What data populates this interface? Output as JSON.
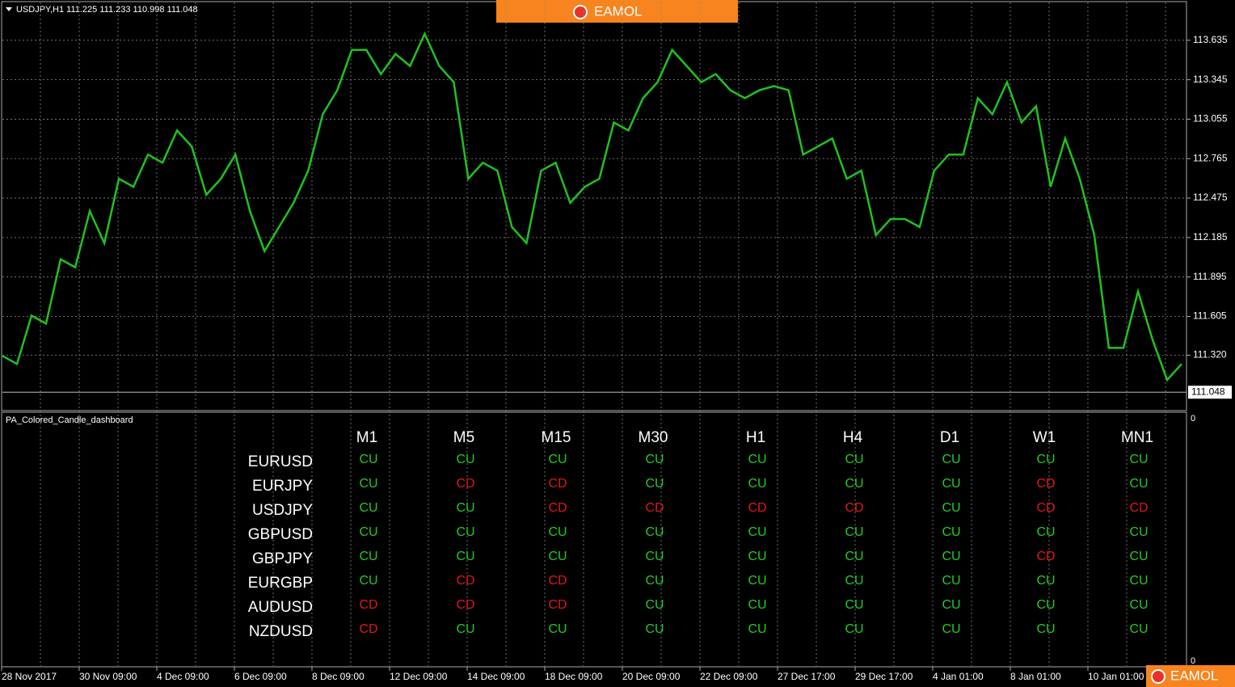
{
  "header": {
    "title": "USDJPY,H1  111.225 111.233 110.998 111.048"
  },
  "logo": "EAMOL",
  "chart_data": {
    "type": "line",
    "color": "#1fc21f",
    "values": [
      111.315,
      111.256,
      111.611,
      111.552,
      112.025,
      111.966,
      112.38,
      112.144,
      112.617,
      112.558,
      112.795,
      112.735,
      112.972,
      112.854,
      112.499,
      112.617,
      112.795,
      112.38,
      112.085,
      112.262,
      112.44,
      112.676,
      113.091,
      113.268,
      113.564,
      113.564,
      113.386,
      113.534,
      113.446,
      113.682,
      113.446,
      113.327,
      112.617,
      112.735,
      112.676,
      112.262,
      112.144,
      112.676,
      112.735,
      112.44,
      112.558,
      112.617,
      113.031,
      112.972,
      113.209,
      113.327,
      113.564,
      113.446,
      113.327,
      113.386,
      113.268,
      113.209,
      113.268,
      113.298,
      113.268,
      112.795,
      112.854,
      112.913,
      112.617,
      112.676,
      112.203,
      112.321,
      112.321,
      112.262,
      112.676,
      112.795,
      112.795,
      113.209,
      113.091,
      113.327,
      113.031,
      113.15,
      112.558,
      112.913,
      112.617,
      112.203,
      111.374,
      111.374,
      111.789,
      111.434,
      111.138,
      111.256
    ],
    "ylim": [
      110.913,
      113.919
    ],
    "yticks": [
      {
        "value": 111.32,
        "label": "111.320"
      },
      111.605,
      111.895,
      112.185,
      112.475,
      112.765,
      113.055,
      113.345,
      113.635
    ],
    "last": 111.048,
    "grid": true,
    "xtick_labels": [
      "28 Nov 2017",
      "30 Nov 09:00",
      "4 Dec 09:00",
      "6 Dec 09:00",
      "8 Dec 09:00",
      "12 Dec 09:00",
      "14 Dec 09:00",
      "18 Dec 09:00",
      "20 Dec 09:00",
      "22 Dec 09:00",
      "27 Dec 17:00",
      "29 Dec 17:00",
      "4 Jan 01:00",
      "8 Jan 01:00",
      "10 Jan 01:00"
    ]
  },
  "dashboard": {
    "name": "PA_Colored_Candle_dashboard",
    "pane_ticks": [
      0,
      0
    ],
    "timeframes": [
      "M1",
      "M5",
      "M15",
      "M30",
      "H1",
      "H4",
      "D1",
      "W1",
      "MN1"
    ],
    "pairs": [
      "EURUSD",
      "EURJPY",
      "USDJPY",
      "GBPUSD",
      "GBPJPY",
      "EURGBP",
      "AUDUSD",
      "NZDUSD"
    ],
    "rows": [
      [
        "CU",
        "CU",
        "CU",
        "CU",
        "CU",
        "CU",
        "CU",
        "CU",
        "CU"
      ],
      [
        "CU",
        "CD",
        "CD",
        "CU",
        "CU",
        "CU",
        "CU",
        "CD",
        "CU"
      ],
      [
        "CU",
        "CU",
        "CD",
        "CD",
        "CD",
        "CD",
        "CU",
        "CD",
        "CD"
      ],
      [
        "CU",
        "CU",
        "CU",
        "CU",
        "CU",
        "CU",
        "CU",
        "CU",
        "CU"
      ],
      [
        "CU",
        "CU",
        "CU",
        "CU",
        "CU",
        "CU",
        "CU",
        "CD",
        "CU"
      ],
      [
        "CU",
        "CD",
        "CD",
        "CU",
        "CU",
        "CU",
        "CU",
        "CU",
        "CU"
      ],
      [
        "CD",
        "CD",
        "CD",
        "CU",
        "CU",
        "CU",
        "CU",
        "CU",
        "CU"
      ],
      [
        "CD",
        "CU",
        "CU",
        "CU",
        "CU",
        "CU",
        "CU",
        "CU",
        "CU"
      ]
    ],
    "colors": {
      "CU": "#22cc22",
      "CD": "#e01818"
    }
  }
}
